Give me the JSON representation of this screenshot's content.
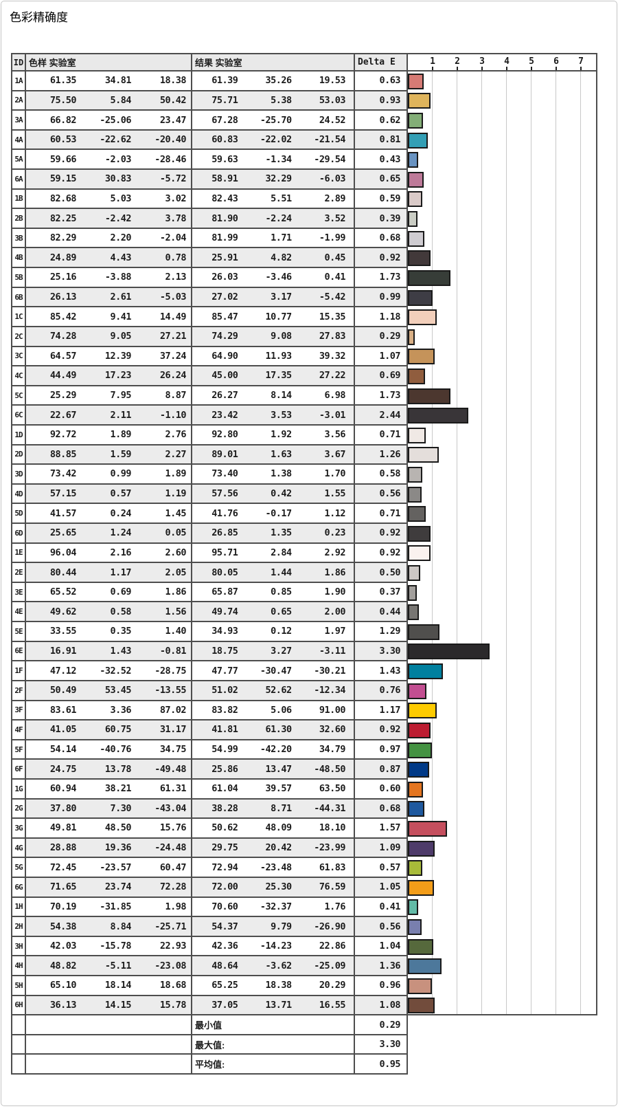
{
  "title": "色彩精确度",
  "table": {
    "headers": {
      "id": "ID",
      "sample": "色样 实验室",
      "result": "结果 实验室",
      "delta": "Delta E"
    }
  },
  "colors": {
    "border": "#4d4d4d",
    "header_bg": "#e9e9e9",
    "row_alt_bg": "#ececec",
    "gridline": "#c8c8c8",
    "bar_border": "#1a1a1a",
    "page_border": "#c5c5c5",
    "text": "#1b1b1b"
  },
  "chart_data": {
    "type": "bar",
    "orientation": "horizontal",
    "title": "色彩精确度",
    "xlabel": "Delta E",
    "x_ticks": [
      "1",
      "2",
      "3",
      "4",
      "5",
      "6",
      "7"
    ],
    "xlim": [
      0,
      7.7
    ],
    "grid": true,
    "legend": "none",
    "bar_color_rule": "each bar filled with the sRGB color of that row's sample Lab value",
    "categories": [
      "1A",
      "2A",
      "3A",
      "4A",
      "5A",
      "6A",
      "1B",
      "2B",
      "3B",
      "4B",
      "5B",
      "6B",
      "1C",
      "2C",
      "3C",
      "4C",
      "5C",
      "6C",
      "1D",
      "2D",
      "3D",
      "4D",
      "5D",
      "6D",
      "1E",
      "2E",
      "3E",
      "4E",
      "5E",
      "6E",
      "1F",
      "2F",
      "3F",
      "4F",
      "5F",
      "6F",
      "1G",
      "2G",
      "3G",
      "4G",
      "5G",
      "6G",
      "1H",
      "2H",
      "3H",
      "4H",
      "5H",
      "6H"
    ],
    "values": [
      0.63,
      0.93,
      0.62,
      0.81,
      0.43,
      0.65,
      0.59,
      0.39,
      0.68,
      0.92,
      1.73,
      0.99,
      1.18,
      0.29,
      1.07,
      0.69,
      1.73,
      2.44,
      0.71,
      1.26,
      0.58,
      0.56,
      0.71,
      0.92,
      0.92,
      0.5,
      0.37,
      0.44,
      1.29,
      3.3,
      1.43,
      0.76,
      1.17,
      0.92,
      0.97,
      0.87,
      0.6,
      0.68,
      1.57,
      1.09,
      0.57,
      1.05,
      0.41,
      0.56,
      1.04,
      1.36,
      0.96,
      1.08
    ],
    "rows": [
      {
        "id": "1A",
        "sample": [
          "61.35",
          "34.81",
          "18.38"
        ],
        "result": [
          "61.39",
          "35.26",
          "19.53"
        ],
        "delta": "0.63"
      },
      {
        "id": "2A",
        "sample": [
          "75.50",
          "5.84",
          "50.42"
        ],
        "result": [
          "75.71",
          "5.38",
          "53.03"
        ],
        "delta": "0.93"
      },
      {
        "id": "3A",
        "sample": [
          "66.82",
          "-25.06",
          "23.47"
        ],
        "result": [
          "67.28",
          "-25.70",
          "24.52"
        ],
        "delta": "0.62"
      },
      {
        "id": "4A",
        "sample": [
          "60.53",
          "-22.62",
          "-20.40"
        ],
        "result": [
          "60.83",
          "-22.02",
          "-21.54"
        ],
        "delta": "0.81"
      },
      {
        "id": "5A",
        "sample": [
          "59.66",
          "-2.03",
          "-28.46"
        ],
        "result": [
          "59.63",
          "-1.34",
          "-29.54"
        ],
        "delta": "0.43"
      },
      {
        "id": "6A",
        "sample": [
          "59.15",
          "30.83",
          "-5.72"
        ],
        "result": [
          "58.91",
          "32.29",
          "-6.03"
        ],
        "delta": "0.65"
      },
      {
        "id": "1B",
        "sample": [
          "82.68",
          "5.03",
          "3.02"
        ],
        "result": [
          "82.43",
          "5.51",
          "2.89"
        ],
        "delta": "0.59"
      },
      {
        "id": "2B",
        "sample": [
          "82.25",
          "-2.42",
          "3.78"
        ],
        "result": [
          "81.90",
          "-2.24",
          "3.52"
        ],
        "delta": "0.39"
      },
      {
        "id": "3B",
        "sample": [
          "82.29",
          "2.20",
          "-2.04"
        ],
        "result": [
          "81.99",
          "1.71",
          "-1.99"
        ],
        "delta": "0.68"
      },
      {
        "id": "4B",
        "sample": [
          "24.89",
          "4.43",
          "0.78"
        ],
        "result": [
          "25.91",
          "4.82",
          "0.45"
        ],
        "delta": "0.92"
      },
      {
        "id": "5B",
        "sample": [
          "25.16",
          "-3.88",
          "2.13"
        ],
        "result": [
          "26.03",
          "-3.46",
          "0.41"
        ],
        "delta": "1.73"
      },
      {
        "id": "6B",
        "sample": [
          "26.13",
          "2.61",
          "-5.03"
        ],
        "result": [
          "27.02",
          "3.17",
          "-5.42"
        ],
        "delta": "0.99"
      },
      {
        "id": "1C",
        "sample": [
          "85.42",
          "9.41",
          "14.49"
        ],
        "result": [
          "85.47",
          "10.77",
          "15.35"
        ],
        "delta": "1.18"
      },
      {
        "id": "2C",
        "sample": [
          "74.28",
          "9.05",
          "27.21"
        ],
        "result": [
          "74.29",
          "9.08",
          "27.83"
        ],
        "delta": "0.29"
      },
      {
        "id": "3C",
        "sample": [
          "64.57",
          "12.39",
          "37.24"
        ],
        "result": [
          "64.90",
          "11.93",
          "39.32"
        ],
        "delta": "1.07"
      },
      {
        "id": "4C",
        "sample": [
          "44.49",
          "17.23",
          "26.24"
        ],
        "result": [
          "45.00",
          "17.35",
          "27.22"
        ],
        "delta": "0.69"
      },
      {
        "id": "5C",
        "sample": [
          "25.29",
          "7.95",
          "8.87"
        ],
        "result": [
          "26.27",
          "8.14",
          "6.98"
        ],
        "delta": "1.73"
      },
      {
        "id": "6C",
        "sample": [
          "22.67",
          "2.11",
          "-1.10"
        ],
        "result": [
          "23.42",
          "3.53",
          "-3.01"
        ],
        "delta": "2.44"
      },
      {
        "id": "1D",
        "sample": [
          "92.72",
          "1.89",
          "2.76"
        ],
        "result": [
          "92.80",
          "1.92",
          "3.56"
        ],
        "delta": "0.71"
      },
      {
        "id": "2D",
        "sample": [
          "88.85",
          "1.59",
          "2.27"
        ],
        "result": [
          "89.01",
          "1.63",
          "3.67"
        ],
        "delta": "1.26"
      },
      {
        "id": "3D",
        "sample": [
          "73.42",
          "0.99",
          "1.89"
        ],
        "result": [
          "73.40",
          "1.38",
          "1.70"
        ],
        "delta": "0.58"
      },
      {
        "id": "4D",
        "sample": [
          "57.15",
          "0.57",
          "1.19"
        ],
        "result": [
          "57.56",
          "0.42",
          "1.55"
        ],
        "delta": "0.56"
      },
      {
        "id": "5D",
        "sample": [
          "41.57",
          "0.24",
          "1.45"
        ],
        "result": [
          "41.76",
          "-0.17",
          "1.12"
        ],
        "delta": "0.71"
      },
      {
        "id": "6D",
        "sample": [
          "25.65",
          "1.24",
          "0.05"
        ],
        "result": [
          "26.85",
          "1.35",
          "0.23"
        ],
        "delta": "0.92"
      },
      {
        "id": "1E",
        "sample": [
          "96.04",
          "2.16",
          "2.60"
        ],
        "result": [
          "95.71",
          "2.84",
          "2.92"
        ],
        "delta": "0.92"
      },
      {
        "id": "2E",
        "sample": [
          "80.44",
          "1.17",
          "2.05"
        ],
        "result": [
          "80.05",
          "1.44",
          "1.86"
        ],
        "delta": "0.50"
      },
      {
        "id": "3E",
        "sample": [
          "65.52",
          "0.69",
          "1.86"
        ],
        "result": [
          "65.87",
          "0.85",
          "1.90"
        ],
        "delta": "0.37"
      },
      {
        "id": "4E",
        "sample": [
          "49.62",
          "0.58",
          "1.56"
        ],
        "result": [
          "49.74",
          "0.65",
          "2.00"
        ],
        "delta": "0.44"
      },
      {
        "id": "5E",
        "sample": [
          "33.55",
          "0.35",
          "1.40"
        ],
        "result": [
          "34.93",
          "0.12",
          "1.97"
        ],
        "delta": "1.29"
      },
      {
        "id": "6E",
        "sample": [
          "16.91",
          "1.43",
          "-0.81"
        ],
        "result": [
          "18.75",
          "3.27",
          "-3.11"
        ],
        "delta": "3.30"
      },
      {
        "id": "1F",
        "sample": [
          "47.12",
          "-32.52",
          "-28.75"
        ],
        "result": [
          "47.77",
          "-30.47",
          "-30.21"
        ],
        "delta": "1.43"
      },
      {
        "id": "2F",
        "sample": [
          "50.49",
          "53.45",
          "-13.55"
        ],
        "result": [
          "51.02",
          "52.62",
          "-12.34"
        ],
        "delta": "0.76"
      },
      {
        "id": "3F",
        "sample": [
          "83.61",
          "3.36",
          "87.02"
        ],
        "result": [
          "83.82",
          "5.06",
          "91.00"
        ],
        "delta": "1.17"
      },
      {
        "id": "4F",
        "sample": [
          "41.05",
          "60.75",
          "31.17"
        ],
        "result": [
          "41.81",
          "61.30",
          "32.60"
        ],
        "delta": "0.92"
      },
      {
        "id": "5F",
        "sample": [
          "54.14",
          "-40.76",
          "34.75"
        ],
        "result": [
          "54.99",
          "-42.20",
          "34.79"
        ],
        "delta": "0.97"
      },
      {
        "id": "6F",
        "sample": [
          "24.75",
          "13.78",
          "-49.48"
        ],
        "result": [
          "25.86",
          "13.47",
          "-48.50"
        ],
        "delta": "0.87"
      },
      {
        "id": "1G",
        "sample": [
          "60.94",
          "38.21",
          "61.31"
        ],
        "result": [
          "61.04",
          "39.57",
          "63.50"
        ],
        "delta": "0.60"
      },
      {
        "id": "2G",
        "sample": [
          "37.80",
          "7.30",
          "-43.04"
        ],
        "result": [
          "38.28",
          "8.71",
          "-44.31"
        ],
        "delta": "0.68"
      },
      {
        "id": "3G",
        "sample": [
          "49.81",
          "48.50",
          "15.76"
        ],
        "result": [
          "50.62",
          "48.09",
          "18.10"
        ],
        "delta": "1.57"
      },
      {
        "id": "4G",
        "sample": [
          "28.88",
          "19.36",
          "-24.48"
        ],
        "result": [
          "29.75",
          "20.42",
          "-23.99"
        ],
        "delta": "1.09"
      },
      {
        "id": "5G",
        "sample": [
          "72.45",
          "-23.57",
          "60.47"
        ],
        "result": [
          "72.94",
          "-23.48",
          "61.83"
        ],
        "delta": "0.57"
      },
      {
        "id": "6G",
        "sample": [
          "71.65",
          "23.74",
          "72.28"
        ],
        "result": [
          "72.00",
          "25.30",
          "76.59"
        ],
        "delta": "1.05"
      },
      {
        "id": "1H",
        "sample": [
          "70.19",
          "-31.85",
          "1.98"
        ],
        "result": [
          "70.60",
          "-32.37",
          "1.76"
        ],
        "delta": "0.41"
      },
      {
        "id": "2H",
        "sample": [
          "54.38",
          "8.84",
          "-25.71"
        ],
        "result": [
          "54.37",
          "9.79",
          "-26.90"
        ],
        "delta": "0.56"
      },
      {
        "id": "3H",
        "sample": [
          "42.03",
          "-15.78",
          "22.93"
        ],
        "result": [
          "42.36",
          "-14.23",
          "22.86"
        ],
        "delta": "1.04"
      },
      {
        "id": "4H",
        "sample": [
          "48.82",
          "-5.11",
          "-23.08"
        ],
        "result": [
          "48.64",
          "-3.62",
          "-25.09"
        ],
        "delta": "1.36"
      },
      {
        "id": "5H",
        "sample": [
          "65.10",
          "18.14",
          "18.68"
        ],
        "result": [
          "65.25",
          "18.38",
          "20.29"
        ],
        "delta": "0.96"
      },
      {
        "id": "6H",
        "sample": [
          "36.13",
          "14.15",
          "15.78"
        ],
        "result": [
          "37.05",
          "13.71",
          "16.55"
        ],
        "delta": "1.08"
      }
    ],
    "summary": [
      {
        "label": "最小值",
        "value": "0.29"
      },
      {
        "label": "最大值:",
        "value": "3.30"
      },
      {
        "label": "平均值:",
        "value": "0.95"
      }
    ]
  }
}
